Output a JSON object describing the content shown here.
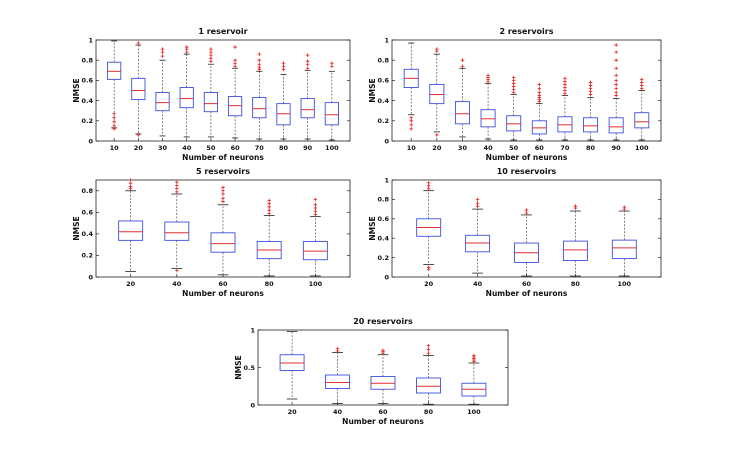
{
  "chart_data": [
    {
      "type": "boxplot",
      "title": "1 reservoir",
      "xlabel": "Number of neurons",
      "ylabel": "NMSE",
      "ylim": [
        0,
        1
      ],
      "yticks": [
        "0",
        "0.2",
        "0.4",
        "0.6",
        "0.8",
        "1"
      ],
      "categories": [
        "10",
        "20",
        "30",
        "40",
        "50",
        "60",
        "70",
        "80",
        "90",
        "100"
      ],
      "boxes": [
        {
          "lw": 0.13,
          "q1": 0.61,
          "med": 0.69,
          "q3": 0.78,
          "uw": 0.99,
          "outliers": [
            0.12,
            0.15,
            0.19,
            0.23,
            0.27
          ]
        },
        {
          "lw": 0.07,
          "q1": 0.41,
          "med": 0.5,
          "q3": 0.62,
          "uw": 0.95,
          "outliers": [
            0.06,
            0.97
          ]
        },
        {
          "lw": 0.05,
          "q1": 0.3,
          "med": 0.38,
          "q3": 0.48,
          "uw": 0.8,
          "outliers": [
            0.84,
            0.88,
            0.91
          ]
        },
        {
          "lw": 0.04,
          "q1": 0.33,
          "med": 0.42,
          "q3": 0.53,
          "uw": 0.86,
          "outliers": [
            0.88,
            0.91,
            0.93
          ]
        },
        {
          "lw": 0.04,
          "q1": 0.29,
          "med": 0.37,
          "q3": 0.48,
          "uw": 0.76,
          "outliers": [
            0.79,
            0.82,
            0.85,
            0.88,
            0.91
          ]
        },
        {
          "lw": 0.03,
          "q1": 0.25,
          "med": 0.35,
          "q3": 0.44,
          "uw": 0.72,
          "outliers": [
            0.74,
            0.77,
            0.8,
            0.93
          ]
        },
        {
          "lw": 0.02,
          "q1": 0.23,
          "med": 0.32,
          "q3": 0.43,
          "uw": 0.69,
          "outliers": [
            0.71,
            0.73,
            0.76,
            0.8,
            0.86
          ]
        },
        {
          "lw": 0.02,
          "q1": 0.16,
          "med": 0.27,
          "q3": 0.37,
          "uw": 0.66,
          "outliers": [
            0.71,
            0.74,
            0.77
          ]
        },
        {
          "lw": 0.02,
          "q1": 0.23,
          "med": 0.31,
          "q3": 0.42,
          "uw": 0.7,
          "outliers": [
            0.72,
            0.76,
            0.79,
            0.85
          ]
        },
        {
          "lw": 0.01,
          "q1": 0.16,
          "med": 0.26,
          "q3": 0.38,
          "uw": 0.69,
          "outliers": [
            0.74,
            0.77
          ]
        }
      ]
    },
    {
      "type": "boxplot",
      "title": "2 reservoirs",
      "xlabel": "Number of neurons",
      "ylabel": "NMSE",
      "ylim": [
        0,
        1
      ],
      "yticks": [
        "0",
        "0.2",
        "0.4",
        "0.6",
        "0.8",
        "1"
      ],
      "categories": [
        "10",
        "20",
        "30",
        "40",
        "50",
        "60",
        "70",
        "80",
        "90",
        "100"
      ],
      "boxes": [
        {
          "lw": 0.26,
          "q1": 0.53,
          "med": 0.62,
          "q3": 0.71,
          "uw": 0.97,
          "outliers": [
            0.12,
            0.16,
            0.2,
            0.23
          ]
        },
        {
          "lw": 0.09,
          "q1": 0.37,
          "med": 0.46,
          "q3": 0.56,
          "uw": 0.86,
          "outliers": [
            0.06,
            0.89,
            0.91
          ]
        },
        {
          "lw": 0.04,
          "q1": 0.17,
          "med": 0.27,
          "q3": 0.39,
          "uw": 0.72,
          "outliers": [
            0.74,
            0.8
          ]
        },
        {
          "lw": 0.02,
          "q1": 0.14,
          "med": 0.22,
          "q3": 0.31,
          "uw": 0.57,
          "outliers": [
            0.59,
            0.61,
            0.63,
            0.65
          ]
        },
        {
          "lw": 0.01,
          "q1": 0.1,
          "med": 0.17,
          "q3": 0.25,
          "uw": 0.46,
          "outliers": [
            0.48,
            0.51,
            0.54,
            0.57,
            0.6,
            0.63
          ]
        },
        {
          "lw": 0.01,
          "q1": 0.07,
          "med": 0.13,
          "q3": 0.2,
          "uw": 0.37,
          "outliers": [
            0.39,
            0.41,
            0.43,
            0.45,
            0.48,
            0.52,
            0.56
          ]
        },
        {
          "lw": 0.01,
          "q1": 0.09,
          "med": 0.16,
          "q3": 0.24,
          "uw": 0.45,
          "outliers": [
            0.47,
            0.5,
            0.53,
            0.56,
            0.59,
            0.62
          ]
        },
        {
          "lw": 0.01,
          "q1": 0.09,
          "med": 0.15,
          "q3": 0.23,
          "uw": 0.43,
          "outliers": [
            0.46,
            0.49,
            0.52,
            0.55,
            0.58
          ]
        },
        {
          "lw": 0.01,
          "q1": 0.08,
          "med": 0.14,
          "q3": 0.23,
          "uw": 0.42,
          "outliers": [
            0.45,
            0.48,
            0.52,
            0.56,
            0.6,
            0.65,
            0.72,
            0.8,
            0.88,
            0.95
          ]
        },
        {
          "lw": 0.01,
          "q1": 0.13,
          "med": 0.19,
          "q3": 0.28,
          "uw": 0.5,
          "outliers": [
            0.52,
            0.55,
            0.58,
            0.61
          ]
        }
      ]
    },
    {
      "type": "boxplot",
      "title": "5 reservoirs",
      "xlabel": "Number of neurons",
      "ylabel": "NMSE",
      "ylim": [
        0,
        0.9
      ],
      "yticks": [
        "0",
        "0.2",
        "0.4",
        "0.6",
        "0.8"
      ],
      "categories": [
        "20",
        "40",
        "60",
        "80",
        "100"
      ],
      "boxes": [
        {
          "lw": 0.05,
          "q1": 0.34,
          "med": 0.42,
          "q3": 0.52,
          "uw": 0.8,
          "outliers": [
            0.82,
            0.84,
            0.87,
            0.9
          ]
        },
        {
          "lw": 0.08,
          "q1": 0.34,
          "med": 0.41,
          "q3": 0.51,
          "uw": 0.77,
          "outliers": [
            0.06,
            0.79,
            0.82,
            0.85,
            0.88
          ]
        },
        {
          "lw": 0.02,
          "q1": 0.23,
          "med": 0.31,
          "q3": 0.41,
          "uw": 0.67,
          "outliers": [
            0.7,
            0.73,
            0.77,
            0.8,
            0.83
          ]
        },
        {
          "lw": 0.01,
          "q1": 0.17,
          "med": 0.25,
          "q3": 0.33,
          "uw": 0.57,
          "outliers": [
            0.59,
            0.62,
            0.65,
            0.68,
            0.71
          ]
        },
        {
          "lw": 0.01,
          "q1": 0.16,
          "med": 0.24,
          "q3": 0.33,
          "uw": 0.56,
          "outliers": [
            0.58,
            0.61,
            0.64,
            0.67,
            0.72
          ]
        }
      ]
    },
    {
      "type": "boxplot",
      "title": "10 reservoirs",
      "xlabel": "Number of neurons",
      "ylabel": "NMSE",
      "ylim": [
        0,
        1
      ],
      "yticks": [
        "0",
        "0.2",
        "0.4",
        "0.6",
        "0.8",
        "1"
      ],
      "categories": [
        "20",
        "40",
        "60",
        "80",
        "100"
      ],
      "boxes": [
        {
          "lw": 0.13,
          "q1": 0.42,
          "med": 0.51,
          "q3": 0.6,
          "uw": 0.89,
          "outliers": [
            0.08,
            0.1,
            0.91,
            0.94,
            0.97
          ]
        },
        {
          "lw": 0.04,
          "q1": 0.26,
          "med": 0.35,
          "q3": 0.43,
          "uw": 0.7,
          "outliers": [
            0.73,
            0.76,
            0.8
          ]
        },
        {
          "lw": 0.01,
          "q1": 0.15,
          "med": 0.25,
          "q3": 0.35,
          "uw": 0.64,
          "outliers": [
            0.66,
            0.69
          ]
        },
        {
          "lw": 0.01,
          "q1": 0.17,
          "med": 0.28,
          "q3": 0.37,
          "uw": 0.68,
          "outliers": [
            0.71,
            0.73
          ]
        },
        {
          "lw": 0.01,
          "q1": 0.19,
          "med": 0.3,
          "q3": 0.38,
          "uw": 0.68,
          "outliers": [
            0.7,
            0.72
          ]
        }
      ]
    },
    {
      "type": "boxplot",
      "title": "20 reservoirs",
      "xlabel": "Number of neurons",
      "ylabel": "NMSE",
      "ylim": [
        0,
        1
      ],
      "yticks": [
        "0",
        "0.5",
        "1"
      ],
      "categories": [
        "20",
        "40",
        "60",
        "80",
        "100"
      ],
      "boxes": [
        {
          "lw": 0.08,
          "q1": 0.46,
          "med": 0.56,
          "q3": 0.67,
          "uw": 0.98,
          "outliers": []
        },
        {
          "lw": 0.02,
          "q1": 0.22,
          "med": 0.3,
          "q3": 0.4,
          "uw": 0.7,
          "outliers": [
            0.72,
            0.75
          ]
        },
        {
          "lw": 0.02,
          "q1": 0.21,
          "med": 0.29,
          "q3": 0.38,
          "uw": 0.67,
          "outliers": [
            0.69,
            0.71,
            0.73
          ]
        },
        {
          "lw": 0.01,
          "q1": 0.16,
          "med": 0.25,
          "q3": 0.36,
          "uw": 0.66,
          "outliers": [
            0.69,
            0.74,
            0.79
          ]
        },
        {
          "lw": 0.01,
          "q1": 0.12,
          "med": 0.21,
          "q3": 0.29,
          "uw": 0.56,
          "outliers": [
            0.58,
            0.6,
            0.62,
            0.64,
            0.66
          ]
        }
      ]
    }
  ]
}
